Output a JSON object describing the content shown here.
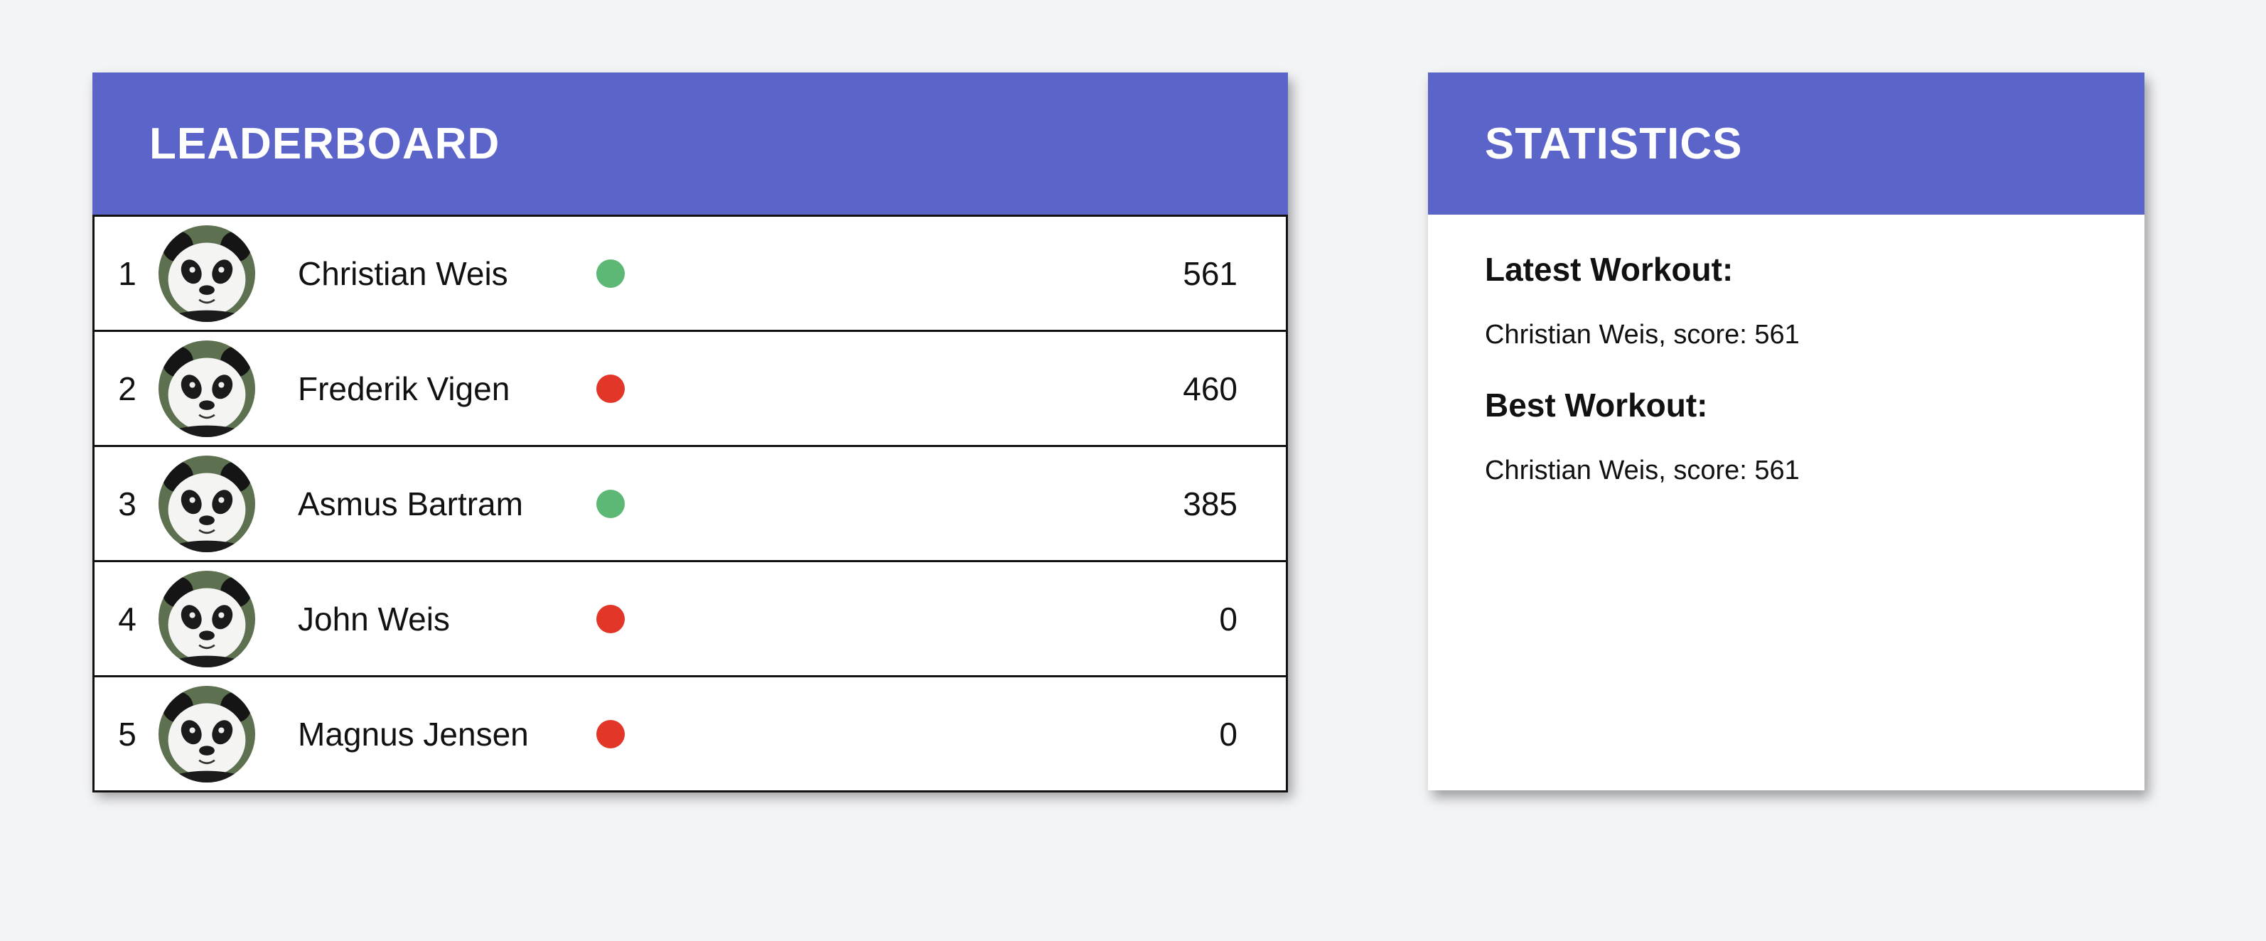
{
  "leaderboard": {
    "title": "LEADERBOARD",
    "accent_color": "#5b64c9",
    "entries": [
      {
        "rank": "1",
        "name": "Christian Weis",
        "status": "green",
        "status_color": "#5cb874",
        "score": "561"
      },
      {
        "rank": "2",
        "name": "Frederik Vigen",
        "status": "red",
        "status_color": "#e23628",
        "score": "460"
      },
      {
        "rank": "3",
        "name": "Asmus Bartram",
        "status": "green",
        "status_color": "#5cb874",
        "score": "385"
      },
      {
        "rank": "4",
        "name": "John Weis",
        "status": "red",
        "status_color": "#e23628",
        "score": "0"
      },
      {
        "rank": "5",
        "name": "Magnus Jensen",
        "status": "red",
        "status_color": "#e23628",
        "score": "0"
      }
    ],
    "avatar_icon": "panda-avatar"
  },
  "statistics": {
    "title": "STATISTICS",
    "latest_heading": "Latest Workout:",
    "latest_text": "Christian Weis, score: 561",
    "best_heading": "Best Workout:",
    "best_text": "Christian Weis, score: 561"
  }
}
